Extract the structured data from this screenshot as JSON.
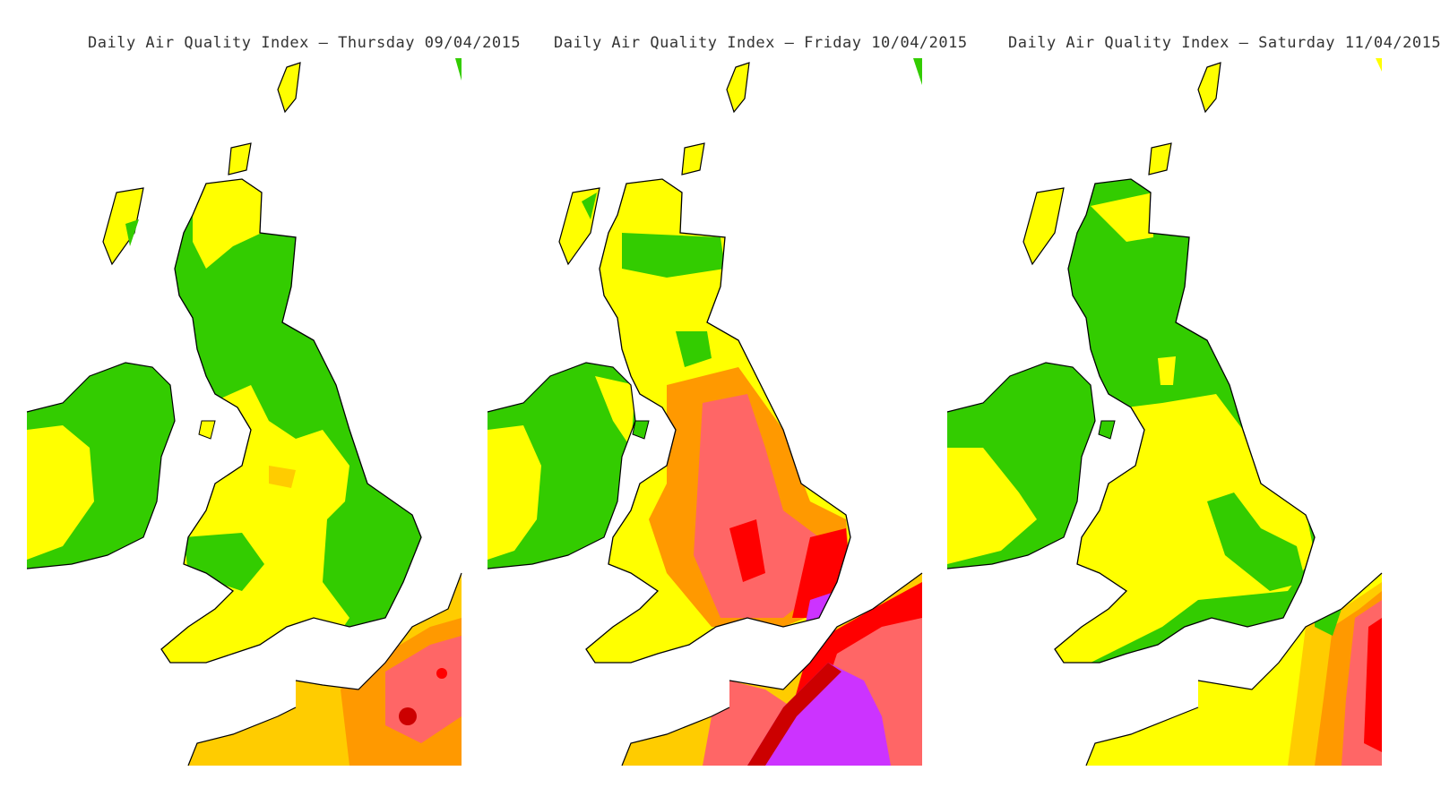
{
  "colors": {
    "low_green": "#33cc00",
    "moderate_yellow": "#ffff00",
    "moderate_gold": "#ffcc00",
    "moderate_orange": "#ff9900",
    "high_salmon": "#ff6666",
    "high_red": "#ff0000",
    "high_darkred": "#cc0000",
    "very_high_purple": "#cc33ff",
    "coast": "#000000",
    "sea": "#ffffff"
  },
  "panels": [
    {
      "title": "Daily Air Quality Index —  Thursday 09/04/2015",
      "scenario": "thursday"
    },
    {
      "title": "Daily Air Quality Index —  Friday 10/04/2015",
      "scenario": "friday"
    },
    {
      "title": "Daily Air Quality Index —  Saturday 11/04/2015",
      "scenario": "saturday"
    }
  ]
}
